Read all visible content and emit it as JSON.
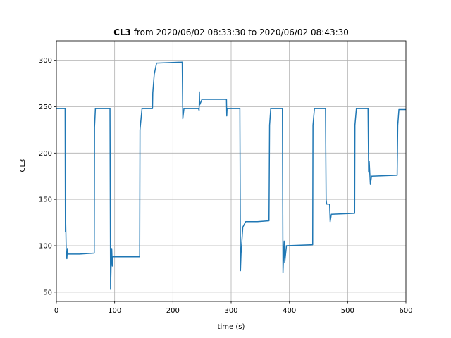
{
  "chart_data": {
    "type": "line",
    "title_bold": "CL3",
    "title": "from 2020/06/02 08:33:30 to 2020/06/02 08:43:30",
    "xlabel": "time (s)",
    "ylabel": "CL3",
    "color": "#1f77b4",
    "grid": true,
    "xlim": [
      0,
      600
    ],
    "xticks": [
      0,
      100,
      200,
      300,
      400,
      500,
      600
    ],
    "ylim": [
      40,
      321
    ],
    "yticks": [
      50,
      100,
      150,
      200,
      250,
      300
    ],
    "x": [
      0,
      15,
      15.5,
      16,
      17,
      18,
      19,
      20,
      40,
      65,
      65.5,
      67,
      92,
      93,
      94,
      95,
      96,
      97,
      100,
      143,
      143.5,
      147,
      165,
      165.5,
      168,
      172,
      216,
      217,
      219,
      244,
      245,
      245.5,
      246,
      250,
      292,
      292.5,
      293,
      315,
      316,
      317,
      320,
      325,
      345,
      365,
      366,
      368,
      388,
      389,
      390,
      391,
      392,
      395,
      440,
      440.5,
      443,
      462,
      463,
      464,
      469,
      470,
      472,
      512,
      512.5,
      515,
      535,
      536,
      537,
      539,
      541,
      585,
      586,
      588,
      600
    ],
    "values": [
      248,
      248,
      115,
      125,
      90,
      86,
      97,
      91,
      91,
      92,
      228,
      248,
      248,
      53,
      80,
      97,
      78,
      88,
      88,
      88,
      225,
      248,
      248,
      265,
      285,
      297,
      298,
      237,
      248,
      248,
      246,
      266,
      252,
      258,
      258,
      240,
      248,
      248,
      73,
      91,
      120,
      126,
      126,
      127,
      230,
      248,
      248,
      71,
      88,
      105,
      82,
      100,
      101,
      230,
      248,
      248,
      150,
      145,
      145,
      126,
      134,
      135,
      230,
      248,
      248,
      180,
      191,
      166,
      175,
      176,
      230,
      247,
      247
    ]
  }
}
